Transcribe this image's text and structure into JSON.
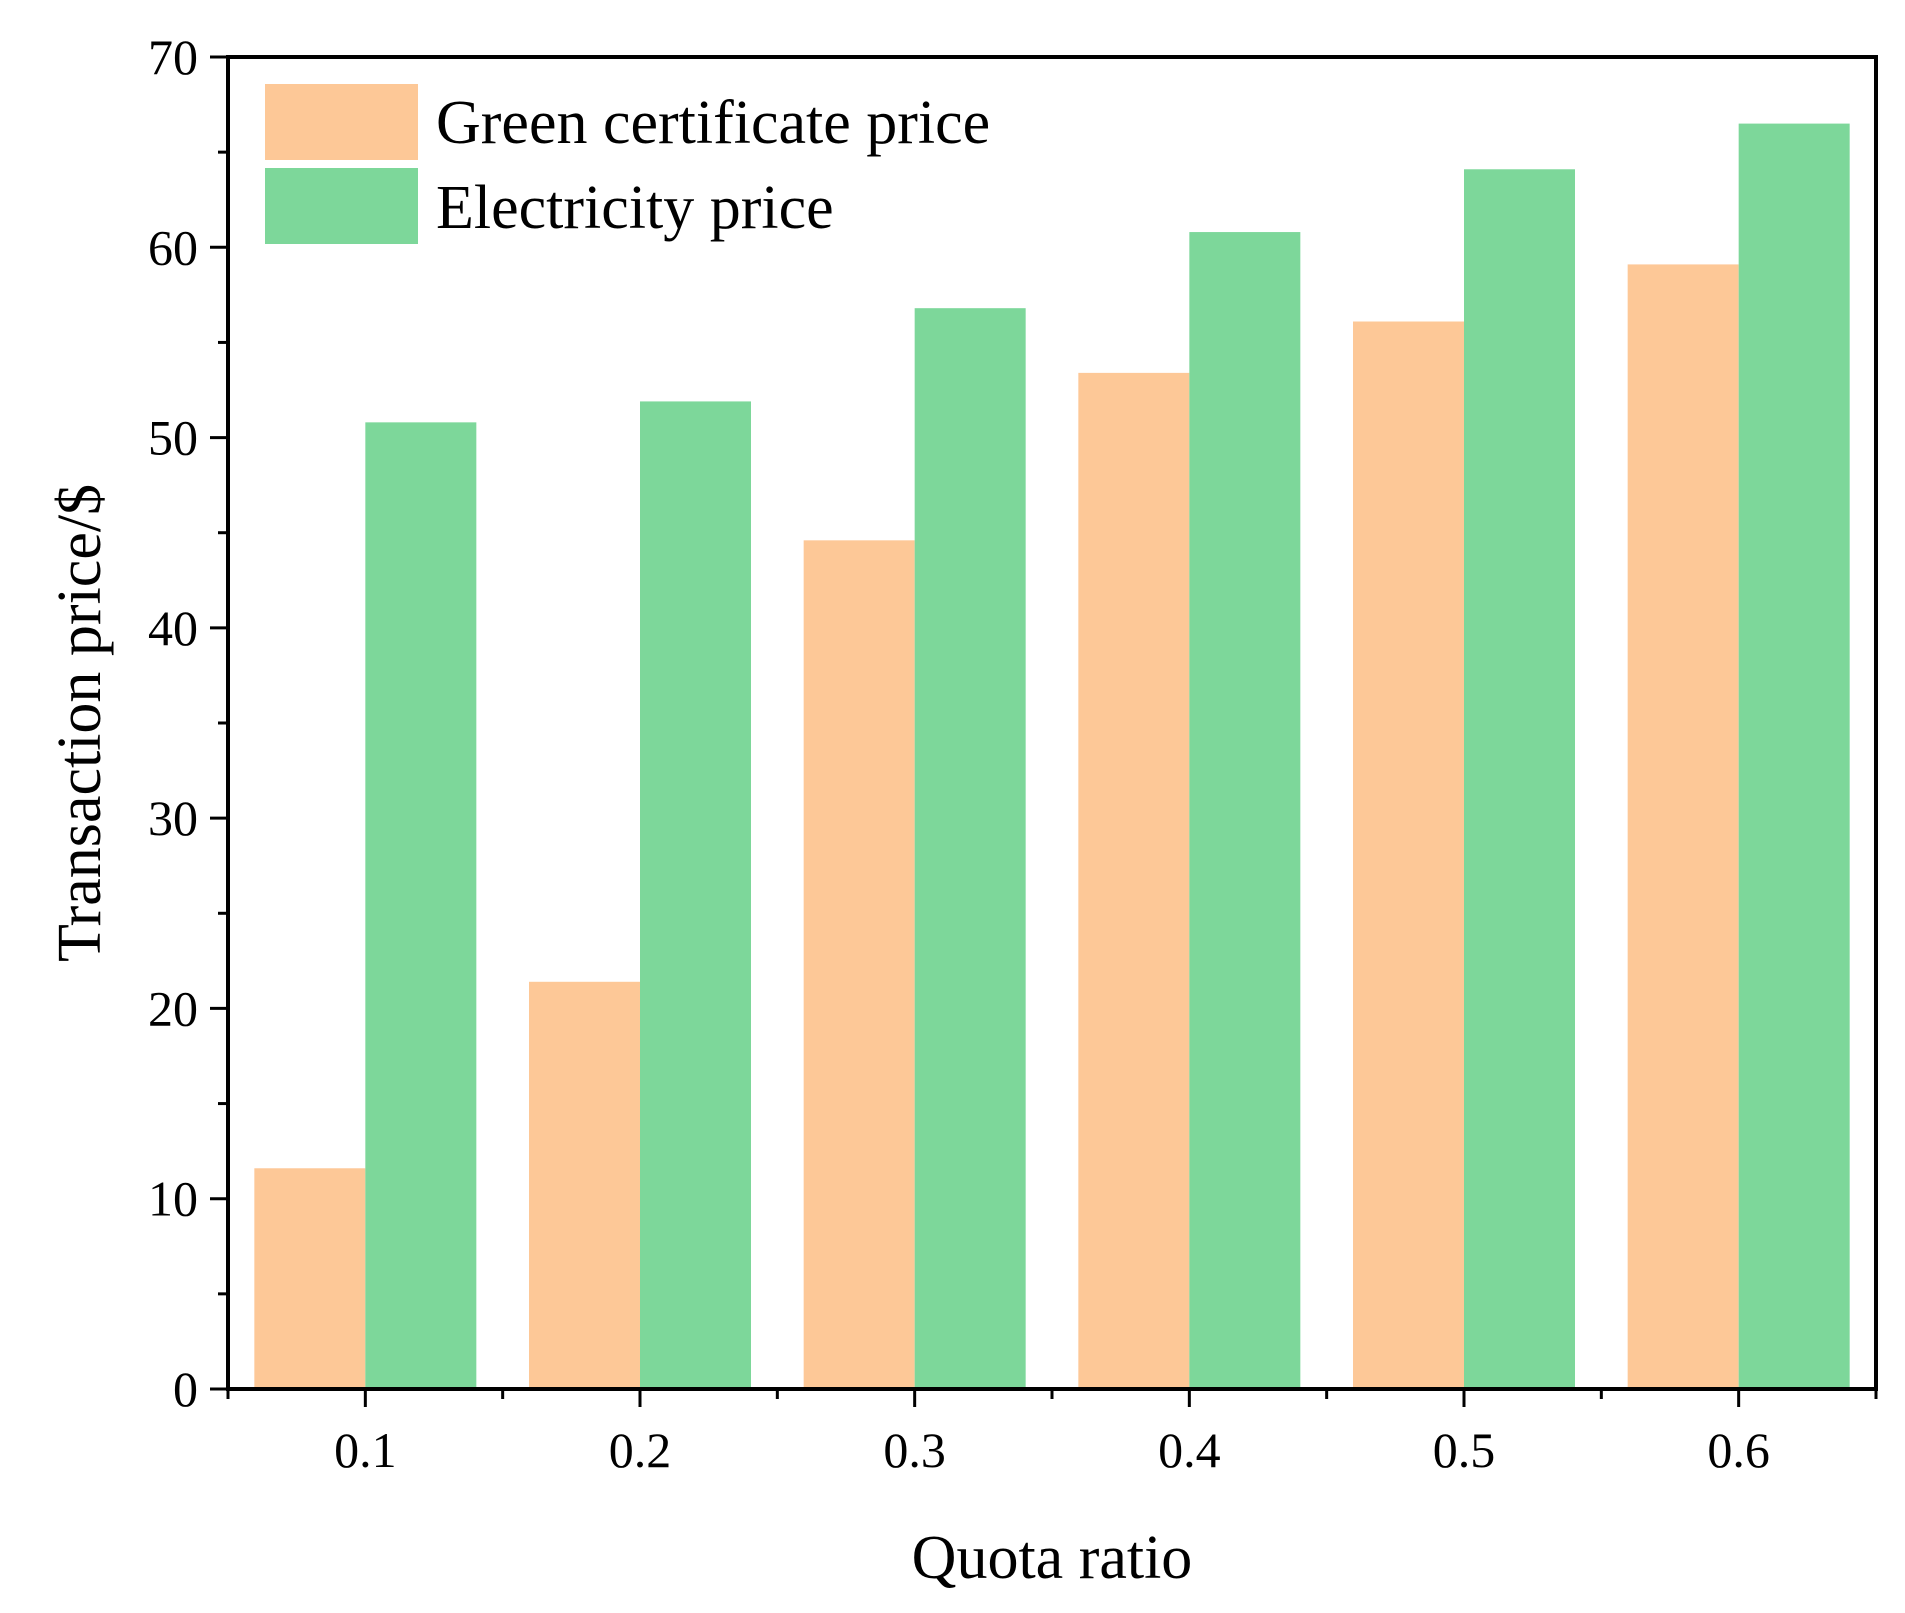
{
  "chart_data": {
    "type": "bar",
    "title": "",
    "xlabel": "Quota ratio",
    "ylabel": "Transaction price/$",
    "categories": [
      "0.1",
      "0.2",
      "0.3",
      "0.4",
      "0.5",
      "0.6"
    ],
    "series": [
      {
        "name": "Green certificate price",
        "color": "#FDC897",
        "values": [
          11.6,
          21.4,
          44.6,
          53.4,
          56.1,
          59.1
        ]
      },
      {
        "name": "Electricity price",
        "color": "#7DD79A",
        "values": [
          50.8,
          51.9,
          56.8,
          60.8,
          64.1,
          66.5
        ]
      }
    ],
    "ylim": [
      0,
      70
    ],
    "yticks": [
      "0",
      "10",
      "20",
      "30",
      "40",
      "50",
      "60",
      "70"
    ],
    "grid": false,
    "legend_position": "top-left"
  }
}
